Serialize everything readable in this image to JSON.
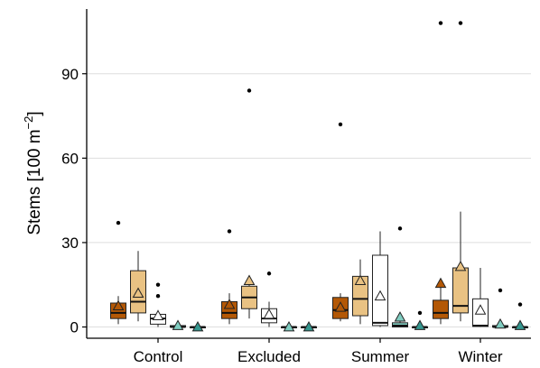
{
  "chart_data": {
    "type": "box",
    "title": "",
    "xlabel": "",
    "ylabel": "Stems [100 m",
    "ylabel_sup": "−2",
    "ylabel_close": "]",
    "ylim": [
      -4,
      113
    ],
    "yticks": [
      0,
      30,
      60,
      90
    ],
    "grid": "horizontal",
    "legend": "none",
    "categories": [
      "Control",
      "Excluded",
      "Summer",
      "Winter"
    ],
    "series": [
      {
        "color": "#b35806",
        "boxes": [
          {
            "whisker_low": 1,
            "q1": 3,
            "median": 5,
            "q3": 8.5,
            "whisker_high": 11,
            "mean": 7.5,
            "outliers": [
              37
            ]
          },
          {
            "whisker_low": 1,
            "q1": 3,
            "median": 5,
            "q3": 9,
            "whisker_high": 12,
            "mean": 8,
            "outliers": [
              34
            ]
          },
          {
            "whisker_low": 2,
            "q1": 3,
            "median": 6,
            "q3": 10.5,
            "whisker_high": 12,
            "mean": 7,
            "outliers": [
              72
            ]
          },
          {
            "whisker_low": 1,
            "q1": 3,
            "median": 5,
            "q3": 9.5,
            "whisker_high": 15,
            "mean": 15.5,
            "outliers": [
              108
            ]
          }
        ]
      },
      {
        "color": "#e9c283",
        "boxes": [
          {
            "whisker_low": 2,
            "q1": 5,
            "median": 9,
            "q3": 20,
            "whisker_high": 27,
            "mean": 12,
            "outliers": []
          },
          {
            "whisker_low": 3,
            "q1": 6.5,
            "median": 10.5,
            "q3": 14.5,
            "whisker_high": 17,
            "mean": 16.5,
            "outliers": [
              84
            ]
          },
          {
            "whisker_low": 1,
            "q1": 4,
            "median": 10,
            "q3": 18,
            "whisker_high": 24,
            "mean": 16.5,
            "outliers": []
          },
          {
            "whisker_low": 2,
            "q1": 5,
            "median": 7.5,
            "q3": 21,
            "whisker_high": 41,
            "mean": 21.5,
            "outliers": [
              108
            ]
          }
        ]
      },
      {
        "color": "#ffffff",
        "boxes": [
          {
            "whisker_low": 0,
            "q1": 1,
            "median": 3,
            "q3": 4.5,
            "whisker_high": 6,
            "mean": 4,
            "outliers": [
              11,
              15
            ]
          },
          {
            "whisker_low": 0,
            "q1": 1.5,
            "median": 3,
            "q3": 6.5,
            "whisker_high": 9,
            "mean": 4.5,
            "outliers": [
              19
            ]
          },
          {
            "whisker_low": 0,
            "q1": 0.5,
            "median": 1.5,
            "q3": 25.5,
            "whisker_high": 34,
            "mean": 11,
            "outliers": []
          },
          {
            "whisker_low": 0,
            "q1": 0.2,
            "median": 0.5,
            "q3": 10,
            "whisker_high": 21,
            "mean": 6,
            "outliers": []
          }
        ]
      },
      {
        "color": "#80cdc1",
        "boxes": [
          {
            "whisker_low": 0,
            "q1": 0,
            "median": 0,
            "q3": 0.5,
            "whisker_high": 1,
            "mean": 0.5,
            "outliers": []
          },
          {
            "whisker_low": 0,
            "q1": 0,
            "median": 0,
            "q3": 0,
            "whisker_high": 0,
            "mean": 0,
            "outliers": []
          },
          {
            "whisker_low": 0,
            "q1": 0,
            "median": 0.5,
            "q3": 1.5,
            "whisker_high": 2.5,
            "mean": 3.5,
            "outliers": [
              35
            ]
          },
          {
            "whisker_low": 0,
            "q1": 0,
            "median": 0,
            "q3": 0.5,
            "whisker_high": 1,
            "mean": 1,
            "outliers": [
              13
            ]
          }
        ]
      },
      {
        "color": "#35978f",
        "boxes": [
          {
            "whisker_low": 0,
            "q1": 0,
            "median": 0,
            "q3": 0,
            "whisker_high": 0,
            "mean": 0,
            "outliers": []
          },
          {
            "whisker_low": 0,
            "q1": 0,
            "median": 0,
            "q3": 0,
            "whisker_high": 0,
            "mean": 0,
            "outliers": []
          },
          {
            "whisker_low": 0,
            "q1": 0,
            "median": 0,
            "q3": 0,
            "whisker_high": 0,
            "mean": 0.5,
            "outliers": [
              5
            ]
          },
          {
            "whisker_low": 0,
            "q1": 0,
            "median": 0,
            "q3": 0,
            "whisker_high": 0,
            "mean": 0.5,
            "outliers": [
              8
            ]
          }
        ]
      }
    ]
  }
}
